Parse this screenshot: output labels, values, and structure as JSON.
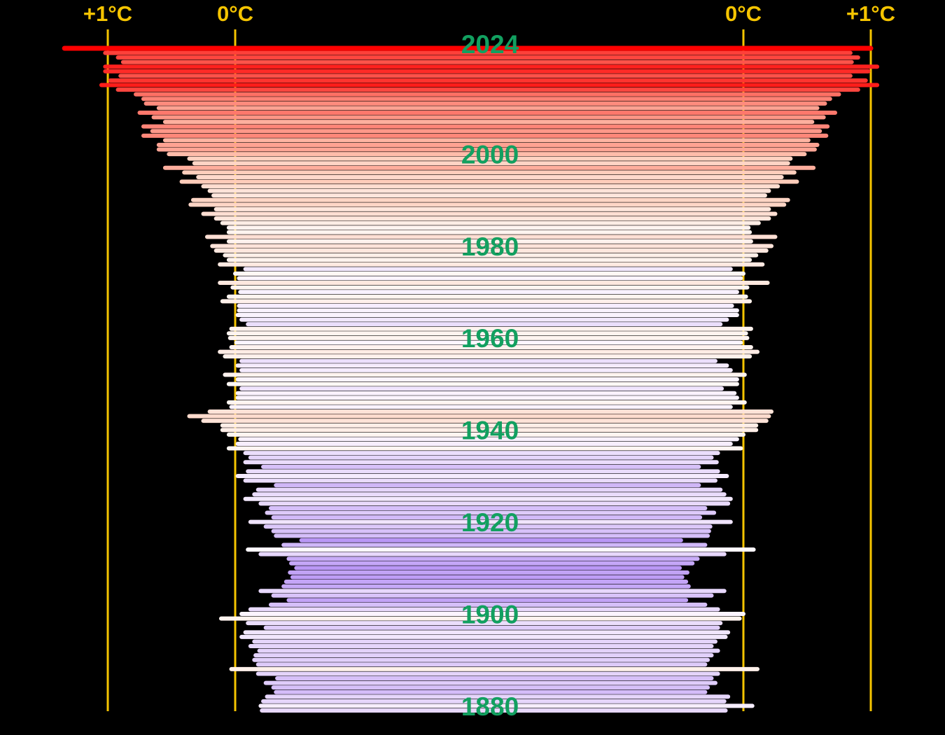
{
  "chart_data": {
    "type": "butterfly-bar",
    "categories": [
      "1880",
      null,
      null,
      null,
      null,
      null,
      null,
      null,
      null,
      null,
      null,
      null,
      null,
      null,
      null,
      null,
      null,
      null,
      null,
      null,
      "1900",
      null,
      null,
      null,
      null,
      null,
      null,
      null,
      null,
      null,
      null,
      null,
      null,
      null,
      null,
      null,
      null,
      null,
      null,
      null,
      "1920",
      null,
      null,
      null,
      null,
      null,
      null,
      null,
      null,
      null,
      null,
      null,
      null,
      null,
      null,
      null,
      null,
      null,
      null,
      null,
      "1940",
      null,
      null,
      null,
      null,
      null,
      null,
      null,
      null,
      null,
      null,
      null,
      null,
      null,
      null,
      null,
      null,
      null,
      null,
      null,
      "1960",
      null,
      null,
      null,
      null,
      null,
      null,
      null,
      null,
      null,
      null,
      null,
      null,
      null,
      null,
      null,
      null,
      null,
      null,
      null,
      "1980",
      null,
      null,
      null,
      null,
      null,
      null,
      null,
      null,
      null,
      null,
      null,
      null,
      null,
      null,
      null,
      null,
      null,
      null,
      null,
      "2000",
      null,
      null,
      null,
      null,
      null,
      null,
      null,
      null,
      null,
      null,
      null,
      null,
      null,
      null,
      null,
      null,
      null,
      null,
      null,
      null,
      null,
      null,
      null,
      "2024"
    ],
    "series": [
      {
        "axis": "x",
        "values": [
          -0.21,
          -0.2,
          -0.22,
          -0.25,
          -0.32,
          -0.3,
          -0.24,
          -0.33,
          -0.18,
          0.03,
          -0.18,
          -0.15,
          -0.16,
          -0.19,
          -0.12,
          -0.15,
          -0.05,
          -0.08,
          -0.24,
          -0.1,
          0.11,
          -0.05,
          -0.12,
          -0.28,
          -0.42,
          -0.3,
          -0.2,
          -0.38,
          -0.4,
          -0.45,
          -0.43,
          -0.48,
          -0.44,
          -0.42,
          -0.2,
          -0.1,
          -0.38,
          -0.52,
          -0.32,
          -0.3,
          -0.24,
          -0.12,
          -0.3,
          -0.25,
          -0.28,
          -0.2,
          -0.08,
          -0.15,
          -0.18,
          -0.32,
          -0.08,
          -0.02,
          -0.1,
          -0.22,
          -0.08,
          -0.12,
          -0.08,
          0.05,
          -0.02,
          -0.04,
          0.05,
          0.1,
          0.1,
          0.25,
          0.36,
          0.2,
          0.03,
          0.05,
          -0.02,
          -0.02,
          -0.05,
          0.05,
          -0.02,
          0.08,
          -0.05,
          -0.02,
          -0.05,
          0.08,
          0.12,
          0.03,
          -0.01,
          0.04,
          0.05,
          0.03,
          -0.1,
          -0.05,
          -0.02,
          -0.03,
          -0.03,
          0.1,
          0.05,
          -0.04,
          0.02,
          0.12,
          -0.03,
          0.0,
          -0.08,
          0.12,
          0.05,
          0.08,
          0.15,
          0.18,
          0.05,
          0.22,
          0.05,
          0.05,
          0.1,
          0.15,
          0.25,
          0.15,
          0.35,
          0.33,
          0.17,
          0.2,
          0.25,
          0.42,
          0.29,
          0.4,
          0.55,
          0.32,
          0.36,
          0.52,
          0.6,
          0.6,
          0.55,
          0.72,
          0.65,
          0.72,
          0.55,
          0.64,
          0.75,
          0.6,
          0.7,
          0.72,
          0.78,
          0.92,
          1.05,
          0.98,
          0.9,
          1.02,
          1.02,
          0.88,
          0.92,
          1.02,
          1.34
        ]
      },
      {
        "axis": "x2",
        "values": [
          -0.14,
          0.07,
          -0.15,
          -0.12,
          -0.3,
          -0.28,
          -0.22,
          -0.25,
          -0.2,
          0.11,
          -0.3,
          -0.28,
          -0.25,
          -0.2,
          -0.25,
          -0.22,
          -0.14,
          -0.12,
          -0.2,
          -0.18,
          -0.03,
          0.0,
          -0.2,
          -0.3,
          -0.45,
          -0.25,
          -0.15,
          -0.43,
          -0.45,
          -0.48,
          -0.44,
          -0.5,
          -0.4,
          -0.36,
          -0.15,
          0.08,
          -0.3,
          -0.49,
          -0.28,
          -0.27,
          -0.26,
          -0.1,
          -0.34,
          -0.23,
          -0.3,
          -0.12,
          -0.1,
          -0.15,
          -0.18,
          -0.35,
          -0.22,
          -0.13,
          -0.2,
          -0.35,
          -0.21,
          -0.25,
          -0.2,
          -0.02,
          -0.1,
          -0.05,
          0.0,
          0.1,
          0.1,
          0.18,
          0.2,
          0.22,
          -0.1,
          0.01,
          -0.05,
          -0.07,
          -0.17,
          -0.05,
          -0.05,
          0.01,
          -0.1,
          -0.13,
          -0.22,
          0.05,
          0.11,
          0.06,
          -0.02,
          0.03,
          0.02,
          0.06,
          -0.18,
          -0.13,
          -0.05,
          -0.05,
          -0.09,
          0.05,
          0.02,
          -0.05,
          0.03,
          0.19,
          -0.02,
          0.0,
          -0.1,
          0.15,
          0.05,
          0.1,
          0.18,
          0.22,
          0.06,
          0.25,
          0.05,
          0.04,
          0.12,
          0.2,
          0.25,
          0.2,
          0.32,
          0.35,
          0.17,
          0.2,
          0.27,
          0.42,
          0.3,
          0.4,
          0.55,
          0.35,
          0.37,
          0.48,
          0.56,
          0.58,
          0.51,
          0.65,
          0.6,
          0.66,
          0.54,
          0.63,
          0.72,
          0.58,
          0.64,
          0.68,
          0.75,
          0.9,
          1.05,
          0.96,
          0.84,
          0.98,
          1.05,
          0.85,
          0.9,
          0.84,
          1.0
        ]
      }
    ],
    "xlim": [
      1.5,
      -2
    ],
    "xticks": [
      {
        "value": 1,
        "label": "+1°C"
      },
      {
        "value": 0,
        "label": "0°C"
      }
    ],
    "x2lim": [
      -2,
      1.5
    ],
    "x2ticks": [
      {
        "value": 0,
        "label": "0°C"
      },
      {
        "value": 1,
        "label": "+1°C"
      }
    ]
  }
}
